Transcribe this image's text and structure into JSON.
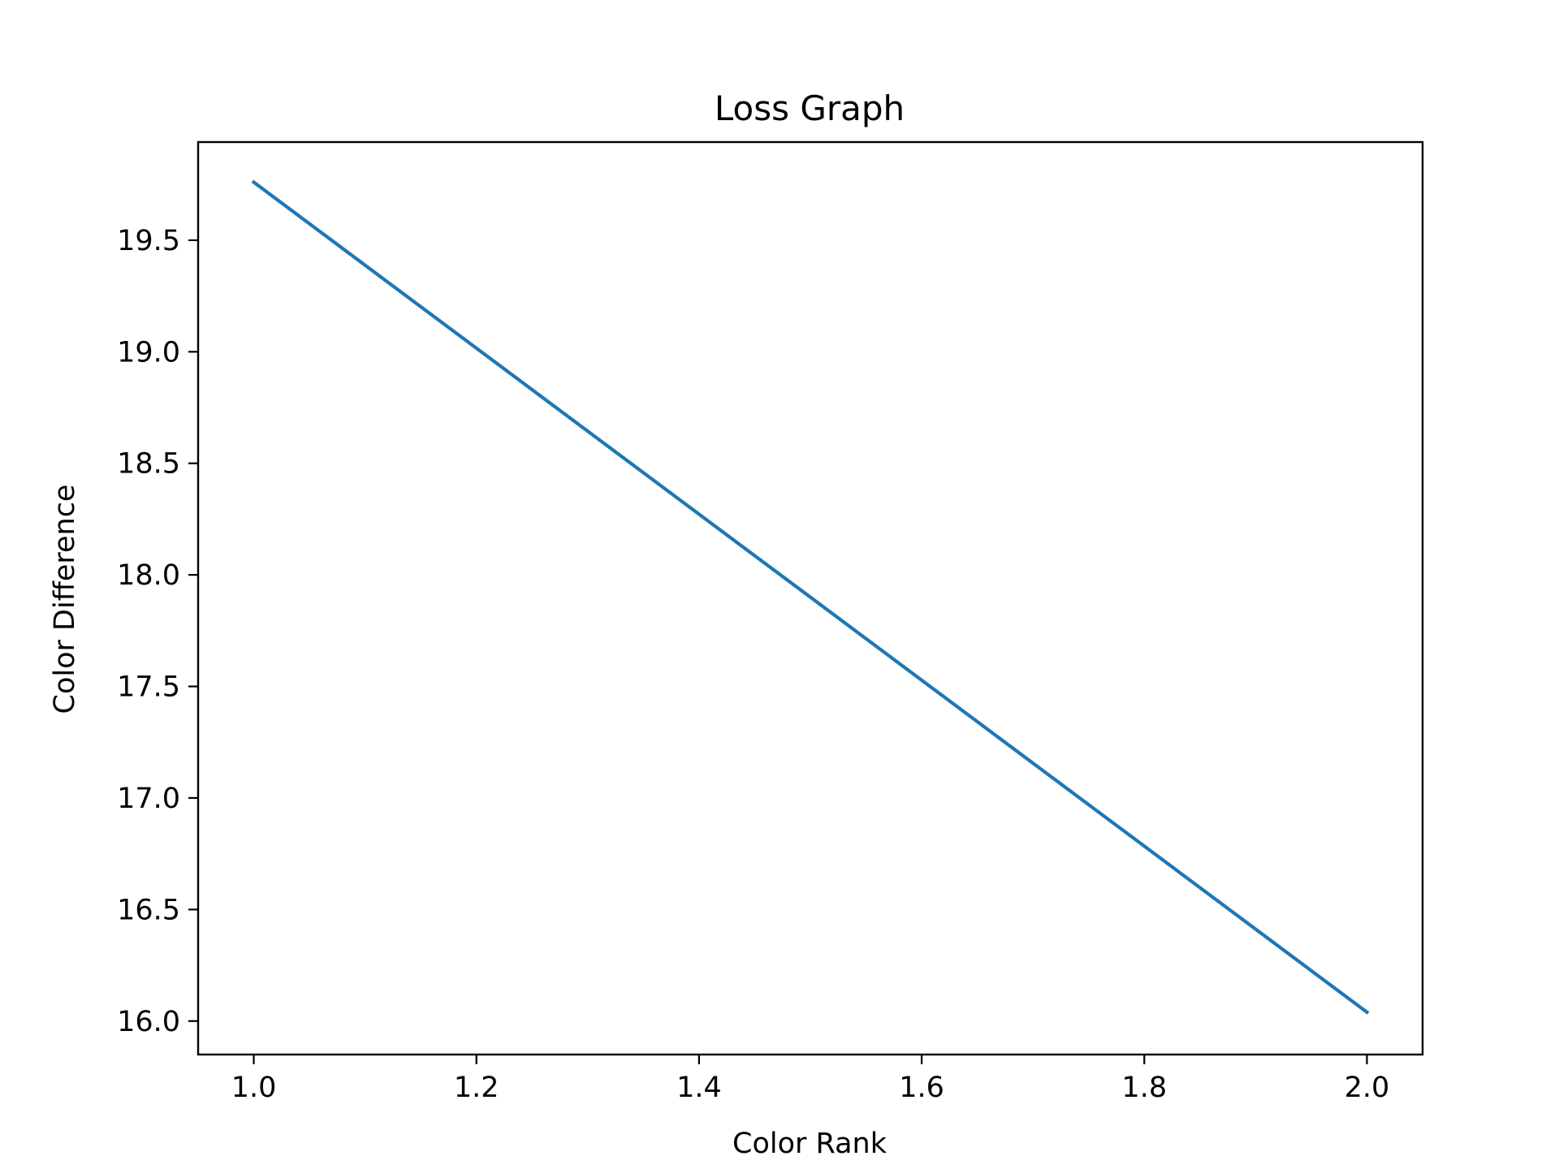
{
  "chart_data": {
    "type": "line",
    "title": "Loss Graph",
    "xlabel": "Color Rank",
    "ylabel": "Color Difference",
    "x": [
      1.0,
      2.0
    ],
    "series": [
      {
        "values": [
          19.76,
          16.04
        ],
        "color": "#1f77b4"
      }
    ],
    "xlim": [
      0.95,
      2.05
    ],
    "ylim": [
      15.85,
      19.94
    ],
    "xticks": [
      1.0,
      1.2,
      1.4,
      1.6,
      1.8,
      2.0
    ],
    "xtick_labels": [
      "1.0",
      "1.2",
      "1.4",
      "1.6",
      "1.8",
      "2.0"
    ],
    "yticks": [
      16.0,
      16.5,
      17.0,
      17.5,
      18.0,
      18.5,
      19.0,
      19.5
    ],
    "ytick_labels": [
      "16.0",
      "16.5",
      "17.0",
      "17.5",
      "18.0",
      "18.5",
      "19.0",
      "19.5"
    ],
    "grid": false,
    "legend": "none"
  }
}
